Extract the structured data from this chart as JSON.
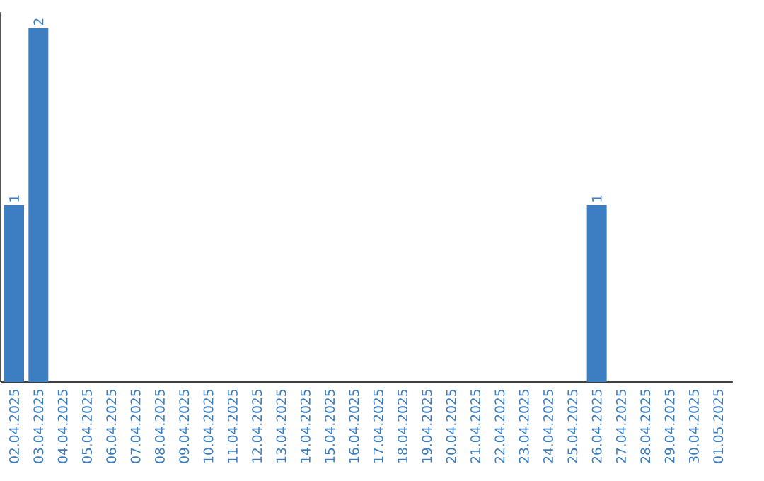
{
  "chart_data": {
    "type": "bar",
    "categories": [
      "02.04.2025",
      "03.04.2025",
      "04.04.2025",
      "05.04.2025",
      "06.04.2025",
      "07.04.2025",
      "08.04.2025",
      "09.04.2025",
      "10.04.2025",
      "11.04.2025",
      "12.04.2025",
      "13.04.2025",
      "14.04.2025",
      "15.04.2025",
      "16.04.2025",
      "17.04.2025",
      "18.04.2025",
      "19.04.2025",
      "20.04.2025",
      "21.04.2025",
      "22.04.2025",
      "23.04.2025",
      "24.04.2025",
      "25.04.2025",
      "26.04.2025",
      "27.04.2025",
      "28.04.2025",
      "29.04.2025",
      "30.04.2025",
      "01.05.2025"
    ],
    "values": [
      1,
      2,
      0,
      0,
      0,
      0,
      0,
      0,
      0,
      0,
      0,
      0,
      0,
      0,
      0,
      0,
      0,
      0,
      0,
      0,
      0,
      0,
      0,
      0,
      1,
      0,
      0,
      0,
      0,
      0
    ],
    "value_labels": [
      "1",
      "2",
      null,
      null,
      null,
      null,
      null,
      null,
      null,
      null,
      null,
      null,
      null,
      null,
      null,
      null,
      null,
      null,
      null,
      null,
      null,
      null,
      null,
      null,
      "1",
      null,
      null,
      null,
      null,
      null
    ],
    "color": "#3d7dc1",
    "tick_labels": "x"
  }
}
